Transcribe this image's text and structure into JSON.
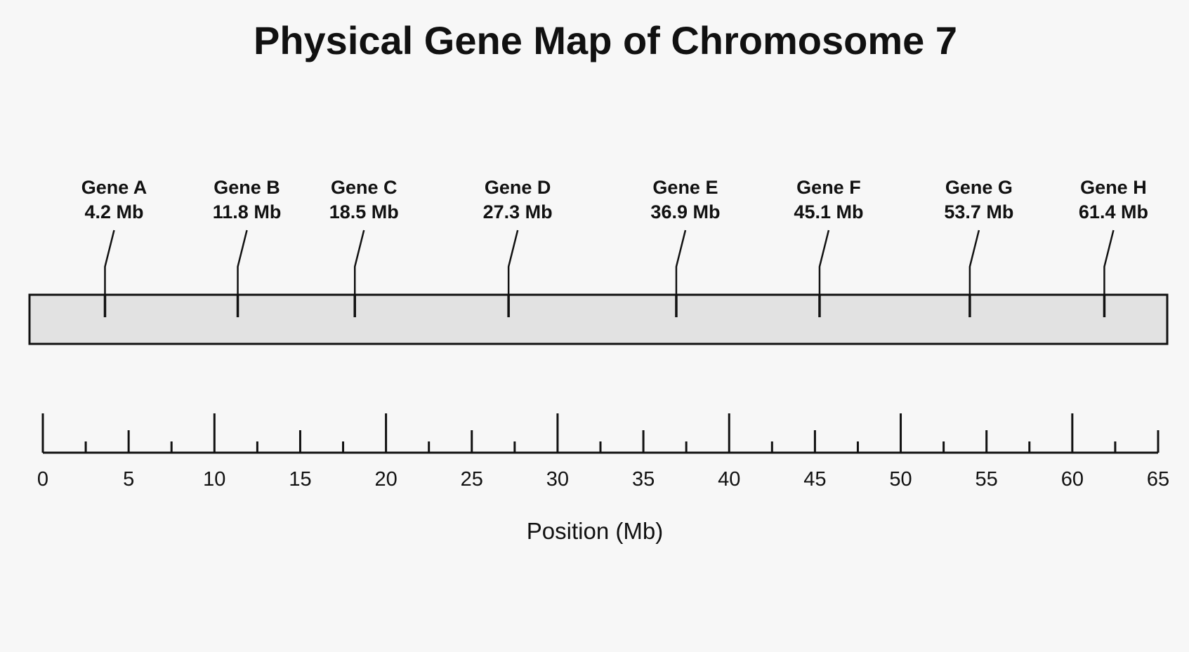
{
  "title": "Physical Gene Map of Chromosome 7",
  "colors": {
    "background": "#f7f7f7",
    "chromosome_fill": "#e2e2e2",
    "line": "#111111"
  },
  "chart_data": {
    "type": "gene-map",
    "xlabel": "Position (Mb)",
    "xlim": [
      0,
      65
    ],
    "major_ticks": [
      0,
      5,
      10,
      15,
      20,
      25,
      30,
      35,
      40,
      45,
      50,
      55,
      60,
      65
    ],
    "tick_labels": [
      "0",
      "5",
      "10",
      "15",
      "20",
      "25",
      "30",
      "35",
      "40",
      "45",
      "50",
      "55",
      "60",
      "65"
    ],
    "genes": [
      {
        "name": "Gene A",
        "position": 4.2,
        "label": "4.2 Mb"
      },
      {
        "name": "Gene B",
        "position": 11.8,
        "label": "11.8 Mb"
      },
      {
        "name": "Gene C",
        "position": 18.5,
        "label": "18.5 Mb"
      },
      {
        "name": "Gene D",
        "position": 27.3,
        "label": "27.3 Mb"
      },
      {
        "name": "Gene E",
        "position": 36.9,
        "label": "36.9 Mb"
      },
      {
        "name": "Gene F",
        "position": 45.1,
        "label": "45.1 Mb"
      },
      {
        "name": "Gene G",
        "position": 53.7,
        "label": "53.7 Mb"
      },
      {
        "name": "Gene H",
        "position": 61.4,
        "label": "61.4 Mb"
      }
    ]
  }
}
